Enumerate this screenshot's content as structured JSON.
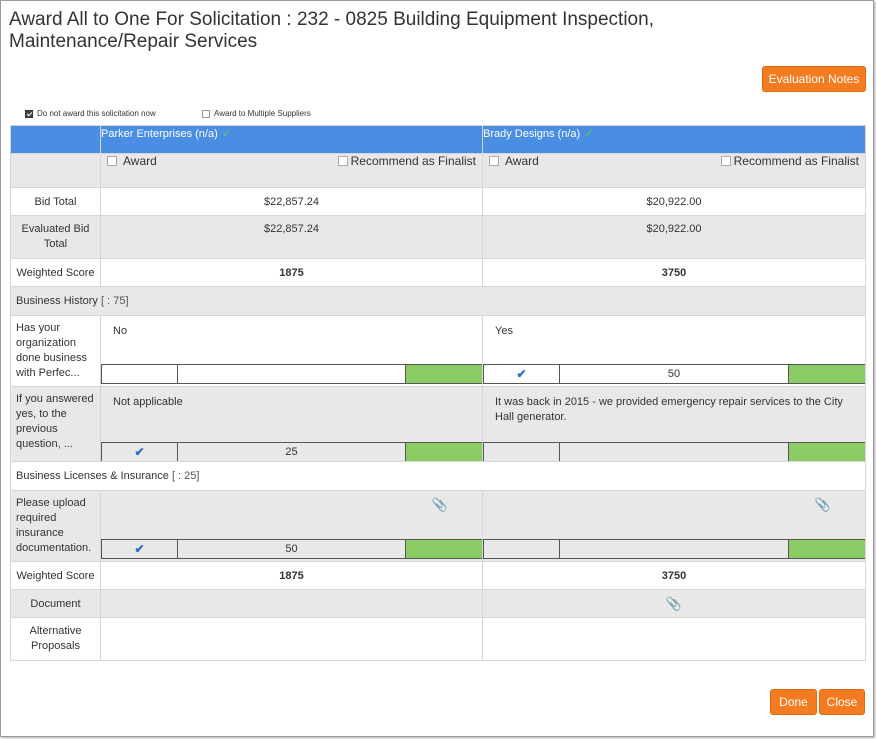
{
  "dialog": {
    "title": "Award All to One For  Solicitation : 232 - 0825 Building Equipment Inspection, Maintenance/Repair Services",
    "evaluation_notes_label": "Evaluation Notes",
    "done_label": "Done",
    "close_label": "Close"
  },
  "options": {
    "do_not_award_label": "Do not award this solicitation now",
    "do_not_award_checked": true,
    "multiple_suppliers_label": "Award to Multiple Suppliers",
    "multiple_suppliers_checked": false
  },
  "suppliers": [
    {
      "name": "Parker Enterprises (n/a)",
      "award_label": "Award",
      "finalist_label": "Recommend as Finalist",
      "bid_total": "$22,857.24",
      "evaluated_bid_total": "$22,857.24",
      "weighted_score": "1875",
      "answers": [
        {
          "text": "No",
          "checked": false,
          "score": ""
        },
        {
          "text": "Not applicable",
          "checked": true,
          "score": "25"
        },
        {
          "text": "",
          "checked": true,
          "score": "50",
          "attachment": true
        }
      ],
      "weighted_score_bottom": "1875",
      "document": false
    },
    {
      "name": "Brady Designs (n/a)",
      "award_label": "Award",
      "finalist_label": "Recommend as Finalist",
      "bid_total": "$20,922.00",
      "evaluated_bid_total": "$20,922.00",
      "weighted_score": "3750",
      "answers": [
        {
          "text": "Yes",
          "checked": true,
          "score": "50"
        },
        {
          "text": "It was back in 2015 - we provided emergency repair services to the City Hall generator.",
          "checked": false,
          "score": ""
        },
        {
          "text": "",
          "checked": false,
          "score": "",
          "attachment": true
        }
      ],
      "weighted_score_bottom": "3750",
      "document": true
    }
  ],
  "row_labels": {
    "bid_total": "Bid Total",
    "evaluated_bid_total": "Evaluated Bid Total",
    "weighted_score": "Weighted Score",
    "document": "Document",
    "alternative_proposals": "Alternative Proposals"
  },
  "sections": [
    {
      "title": "Business History",
      "weight": "[ : 75]",
      "questions": [
        "Has your organization done business with Perfec...",
        "If you answered yes, to the previous question, ..."
      ]
    },
    {
      "title": "Business Licenses & Insurance",
      "weight": "[ : 25]",
      "questions": [
        "Please upload required insurance documentation."
      ]
    }
  ],
  "icons": {
    "check": "check-icon",
    "paperclip": "paperclip-icon",
    "score_check": "score-check-icon"
  },
  "colors": {
    "header_blue": "#4a8ee3",
    "accent_orange": "#f47b20",
    "score_green": "#8ccc65",
    "row_gray": "#e8e8e8"
  }
}
